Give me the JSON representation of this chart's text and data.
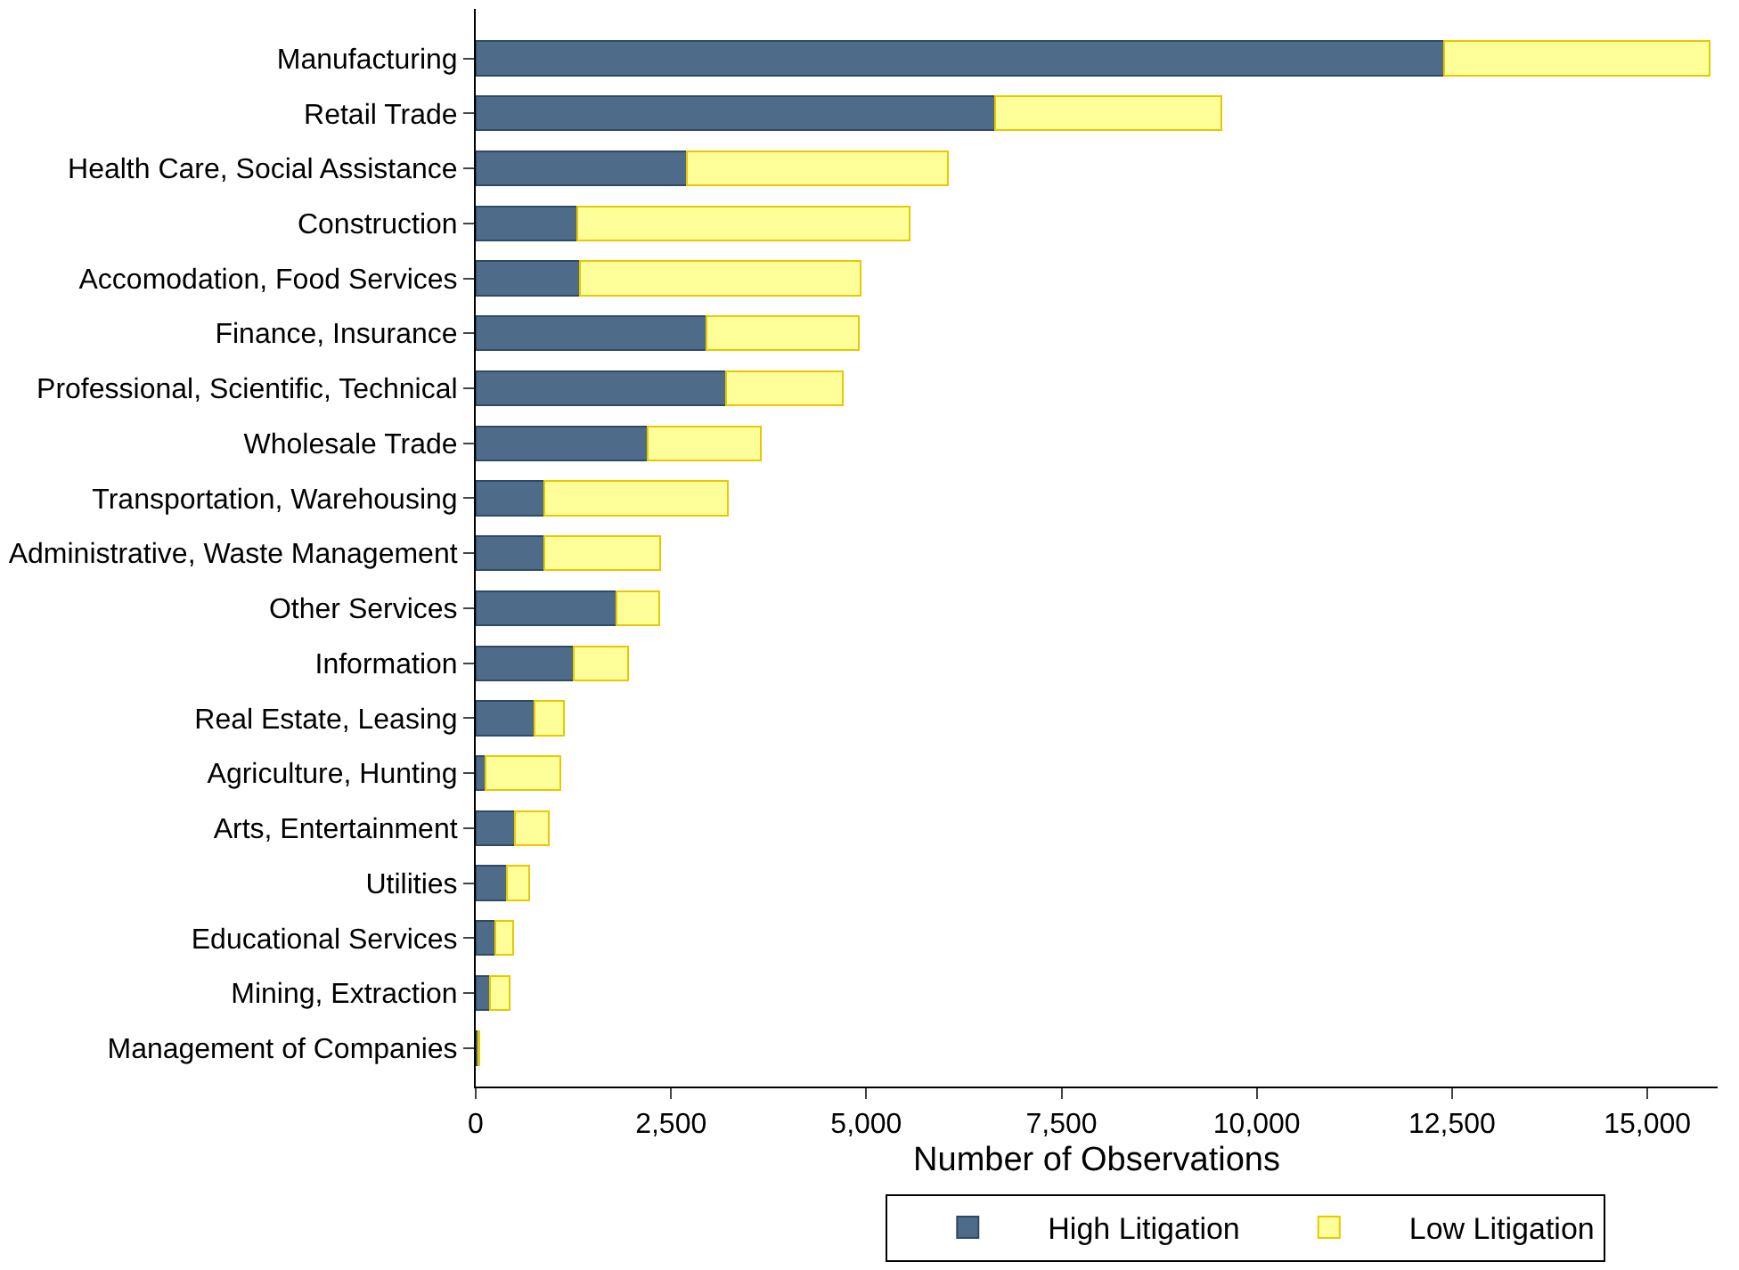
{
  "chart_data": {
    "type": "bar",
    "orientation": "horizontal",
    "stacked": true,
    "xlabel": "Number of Observations",
    "categories": [
      "Manufacturing",
      "Retail Trade",
      "Health Care, Social Assistance",
      "Construction",
      "Accomodation, Food Services",
      "Finance, Insurance",
      "Professional, Scientific, Technical",
      "Wholesale Trade",
      "Transportation, Warehousing",
      "Administrative, Waste Management",
      "Other Services",
      "Information",
      "Real Estate, Leasing",
      "Agriculture, Hunting",
      "Arts, Entertainment",
      "Utilities",
      "Educational Services",
      "Mining, Extraction",
      "Management of Companies"
    ],
    "series": [
      {
        "name": "High Litigation",
        "color": "#4f6b8a",
        "values": [
          12400,
          6650,
          2700,
          1300,
          1330,
          2950,
          3200,
          2200,
          880,
          880,
          1800,
          1250,
          750,
          130,
          500,
          400,
          250,
          180,
          30
        ]
      },
      {
        "name": "Low Litigation",
        "color": "#ffff99",
        "values": [
          3400,
          2900,
          3350,
          4250,
          3600,
          1950,
          1500,
          1450,
          2350,
          1480,
          550,
          700,
          380,
          950,
          430,
          280,
          230,
          250,
          20
        ]
      }
    ],
    "xlim": [
      0,
      15900
    ],
    "xticks": [
      0,
      {
        "value": 2500,
        "label": "2,500"
      },
      {
        "value": 5000,
        "label": "5,000"
      },
      {
        "value": 7500,
        "label": "7,500"
      },
      {
        "value": 10000,
        "label": "10,000"
      },
      {
        "value": 12500,
        "label": "12,500"
      },
      {
        "value": 15000,
        "label": "15,000"
      }
    ],
    "legend": "bottom"
  }
}
